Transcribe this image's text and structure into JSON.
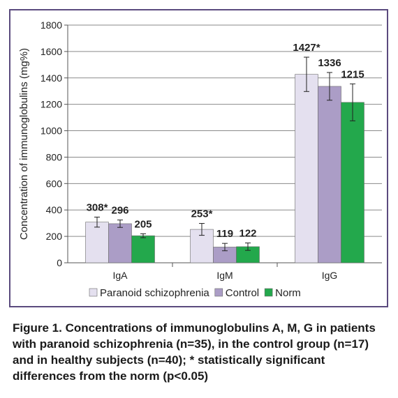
{
  "caption": "Figure 1. Concentrations of immunoglobulins A, M, G in patients with paranoid schizophrenia (n=35), in the control group (n=17) and in healthy subjects (n=40); * statistically significant differences from the norm (p<0.05)",
  "chart_data": {
    "type": "bar",
    "ylabel": "Concentration of immunoglobulins (mg%)",
    "xlabel": "",
    "ylim": [
      0,
      1800
    ],
    "yticks": [
      0,
      200,
      400,
      600,
      800,
      1000,
      1200,
      1400,
      1600,
      1800
    ],
    "categories": [
      "IgA",
      "IgM",
      "IgG"
    ],
    "grid": true,
    "legend_position": "bottom",
    "series": [
      {
        "name": "Paranoid schizophrenia",
        "color": "#e4e0ef",
        "values": [
          308,
          253,
          1427
        ],
        "labels": [
          "308*",
          "253*",
          "1427*"
        ],
        "errors": [
          38,
          45,
          130
        ]
      },
      {
        "name": "Control",
        "color": "#ab9dc6",
        "values": [
          296,
          119,
          1336
        ],
        "labels": [
          "296",
          "119",
          "1336"
        ],
        "errors": [
          28,
          28,
          105
        ]
      },
      {
        "name": "Norm",
        "color": "#23a84c",
        "values": [
          205,
          122,
          1215
        ],
        "labels": [
          "205",
          "122",
          "1215"
        ],
        "errors": [
          15,
          28,
          140
        ]
      }
    ]
  }
}
